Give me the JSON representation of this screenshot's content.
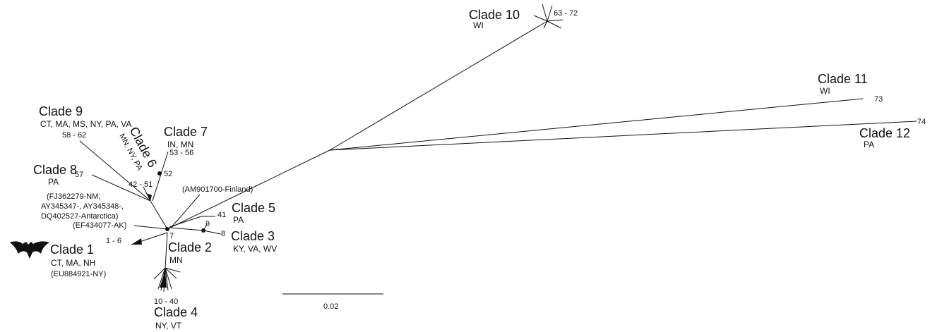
{
  "clades": [
    {
      "name": "Clade 1",
      "locations": "CT, MA, NH",
      "isolates": "1 - 6",
      "note": "(EU884921-NY)"
    },
    {
      "name": "Clade 2",
      "locations": "MN",
      "isolates": "7",
      "note": "(EF434077-AK)"
    },
    {
      "name": "Clade 3",
      "locations": "KY, VA, WV",
      "isolates": "8",
      "node": "9"
    },
    {
      "name": "Clade 4",
      "locations": "NY, VT",
      "isolates": "10 - 40"
    },
    {
      "name": "Clade 5",
      "locations": "PA",
      "isolates": "41",
      "note": "(AM901700-Finland)"
    },
    {
      "name": "Clade 6",
      "locations": "MN, NY, PA",
      "isolates": "42 - 51"
    },
    {
      "name": "Clade 7",
      "locations": "IN, MN",
      "isolates": "53 - 56",
      "node": "52"
    },
    {
      "name": "Clade 8",
      "locations": "PA",
      "isolates": "57",
      "note": [
        "(FJ362279-NM;",
        "AY345347-, AY345348-,",
        "DQ402527-Antarctica)"
      ]
    },
    {
      "name": "Clade 9",
      "locations": "CT, MA, MS, NY, PA, VA",
      "isolates": "58 - 62"
    },
    {
      "name": "Clade 10",
      "locations": "WI",
      "isolates": "63 - 72"
    },
    {
      "name": "Clade 11",
      "locations": "WI",
      "isolates": "73"
    },
    {
      "name": "Clade 12",
      "locations": "PA",
      "isolates": "74"
    }
  ],
  "scale_bar": "0.02"
}
